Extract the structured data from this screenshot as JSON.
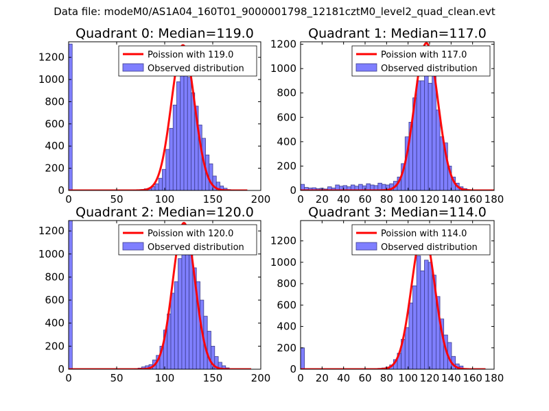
{
  "suptitle": "Data file: modeM0/AS1A04_160T01_9000001798_12181cztM0_level2_quad_clean.evt",
  "colors": {
    "bar_fill": "#7f7fff",
    "bar_edge": "#3c3c8a",
    "poisson_line": "#ff0000"
  },
  "chart_data": [
    {
      "type": "bar",
      "title": "Quadrant 0: Median=119.0",
      "xlim": [
        0,
        200
      ],
      "ylim": [
        0,
        1340
      ],
      "xticks": [
        0,
        50,
        100,
        150,
        200
      ],
      "yticks": [
        0,
        200,
        400,
        600,
        800,
        1000,
        1200
      ],
      "bin_width": 3.75,
      "bins": [
        {
          "x": 0,
          "h": 1320
        },
        {
          "x": 67.5,
          "h": 3
        },
        {
          "x": 71.25,
          "h": 5
        },
        {
          "x": 75,
          "h": 8
        },
        {
          "x": 78.75,
          "h": 15
        },
        {
          "x": 82.5,
          "h": 20
        },
        {
          "x": 86.25,
          "h": 35
        },
        {
          "x": 90,
          "h": 60
        },
        {
          "x": 93.75,
          "h": 110
        },
        {
          "x": 97.5,
          "h": 190
        },
        {
          "x": 101.25,
          "h": 370
        },
        {
          "x": 105,
          "h": 560
        },
        {
          "x": 108.75,
          "h": 770
        },
        {
          "x": 112.5,
          "h": 980
        },
        {
          "x": 116.25,
          "h": 1110
        },
        {
          "x": 120,
          "h": 1080
        },
        {
          "x": 123.75,
          "h": 1020
        },
        {
          "x": 127.5,
          "h": 880
        },
        {
          "x": 131.25,
          "h": 760
        },
        {
          "x": 135,
          "h": 590
        },
        {
          "x": 138.75,
          "h": 470
        },
        {
          "x": 142.5,
          "h": 320
        },
        {
          "x": 146.25,
          "h": 240
        },
        {
          "x": 150,
          "h": 130
        },
        {
          "x": 153.75,
          "h": 75
        },
        {
          "x": 157.5,
          "h": 40
        },
        {
          "x": 161.25,
          "h": 20
        },
        {
          "x": 165,
          "h": 8
        },
        {
          "x": 168.75,
          "h": 4
        }
      ],
      "poisson": {
        "mean": 119.0,
        "peak": 1310,
        "sigma": 12.0,
        "x_end": 186
      },
      "legend": [
        "Poission with 119.0",
        "Observed distribution"
      ]
    },
    {
      "type": "bar",
      "title": "Quadrant 1: Median=117.0",
      "xlim": [
        0,
        180
      ],
      "ylim": [
        0,
        1220
      ],
      "xticks": [
        0,
        20,
        40,
        60,
        80,
        100,
        120,
        140,
        160,
        180
      ],
      "yticks": [
        0,
        200,
        400,
        600,
        800,
        1000,
        1200
      ],
      "bin_width": 3.6,
      "bins": [
        {
          "x": 0,
          "h": 50
        },
        {
          "x": 3.6,
          "h": 25
        },
        {
          "x": 7.2,
          "h": 20
        },
        {
          "x": 10.8,
          "h": 22
        },
        {
          "x": 14.4,
          "h": 15
        },
        {
          "x": 18,
          "h": 18
        },
        {
          "x": 21.6,
          "h": 12
        },
        {
          "x": 25.2,
          "h": 30
        },
        {
          "x": 28.8,
          "h": 20
        },
        {
          "x": 32.4,
          "h": 45
        },
        {
          "x": 36,
          "h": 35
        },
        {
          "x": 39.6,
          "h": 40
        },
        {
          "x": 43.2,
          "h": 30
        },
        {
          "x": 46.8,
          "h": 45
        },
        {
          "x": 50.4,
          "h": 35
        },
        {
          "x": 54,
          "h": 50
        },
        {
          "x": 57.6,
          "h": 38
        },
        {
          "x": 61.2,
          "h": 55
        },
        {
          "x": 64.8,
          "h": 45
        },
        {
          "x": 68.4,
          "h": 40
        },
        {
          "x": 72,
          "h": 60
        },
        {
          "x": 75.6,
          "h": 50
        },
        {
          "x": 79.2,
          "h": 45
        },
        {
          "x": 82.8,
          "h": 55
        },
        {
          "x": 86.4,
          "h": 75
        },
        {
          "x": 90,
          "h": 110
        },
        {
          "x": 93.6,
          "h": 220
        },
        {
          "x": 97.2,
          "h": 440
        },
        {
          "x": 100.8,
          "h": 560
        },
        {
          "x": 104.4,
          "h": 760
        },
        {
          "x": 108,
          "h": 900
        },
        {
          "x": 111.6,
          "h": 900
        },
        {
          "x": 115.2,
          "h": 1020
        },
        {
          "x": 118.8,
          "h": 880
        },
        {
          "x": 122.4,
          "h": 1080
        },
        {
          "x": 126,
          "h": 660
        },
        {
          "x": 129.6,
          "h": 440
        },
        {
          "x": 133.2,
          "h": 390
        },
        {
          "x": 136.8,
          "h": 200
        },
        {
          "x": 140.4,
          "h": 110
        },
        {
          "x": 144,
          "h": 60
        },
        {
          "x": 147.6,
          "h": 30
        },
        {
          "x": 151.2,
          "h": 15
        },
        {
          "x": 154.8,
          "h": 5
        }
      ],
      "poisson": {
        "mean": 117.0,
        "peak": 1210,
        "sigma": 10.8,
        "x_end": 180
      },
      "legend": [
        "Poission with 117.0",
        "Observed distribution"
      ]
    },
    {
      "type": "bar",
      "title": "Quadrant 2: Median=120.0",
      "xlim": [
        0,
        200
      ],
      "ylim": [
        0,
        1290
      ],
      "xticks": [
        0,
        50,
        100,
        150,
        200
      ],
      "yticks": [
        0,
        200,
        400,
        600,
        800,
        1000,
        1200
      ],
      "bin_width": 3.8,
      "bins": [
        {
          "x": 0,
          "h": 1290
        },
        {
          "x": 68.4,
          "h": 5
        },
        {
          "x": 72.2,
          "h": 10
        },
        {
          "x": 76,
          "h": 20
        },
        {
          "x": 79.8,
          "h": 30
        },
        {
          "x": 83.6,
          "h": 40
        },
        {
          "x": 87.4,
          "h": 80
        },
        {
          "x": 91.2,
          "h": 120
        },
        {
          "x": 95,
          "h": 200
        },
        {
          "x": 98.8,
          "h": 340
        },
        {
          "x": 102.6,
          "h": 480
        },
        {
          "x": 106.4,
          "h": 660
        },
        {
          "x": 110.2,
          "h": 760
        },
        {
          "x": 114,
          "h": 960
        },
        {
          "x": 117.8,
          "h": 1080
        },
        {
          "x": 121.6,
          "h": 1060
        },
        {
          "x": 125.4,
          "h": 1020
        },
        {
          "x": 129.2,
          "h": 880
        },
        {
          "x": 133,
          "h": 760
        },
        {
          "x": 136.8,
          "h": 600
        },
        {
          "x": 140.6,
          "h": 460
        },
        {
          "x": 144.4,
          "h": 330
        },
        {
          "x": 148.2,
          "h": 200
        },
        {
          "x": 152,
          "h": 110
        },
        {
          "x": 155.8,
          "h": 60
        },
        {
          "x": 159.6,
          "h": 30
        },
        {
          "x": 163.4,
          "h": 12
        }
      ],
      "poisson": {
        "mean": 120.0,
        "peak": 1270,
        "sigma": 11.5,
        "x_end": 190
      },
      "legend": [
        "Poission with 120.0",
        "Observed distribution"
      ]
    },
    {
      "type": "bar",
      "title": "Quadrant 3: Median=114.0",
      "xlim": [
        0,
        180
      ],
      "ylim": [
        0,
        1390
      ],
      "xticks": [
        0,
        20,
        40,
        60,
        80,
        100,
        120,
        140,
        160,
        180
      ],
      "yticks": [
        0,
        200,
        400,
        600,
        800,
        1000,
        1200
      ],
      "bin_width": 3.6,
      "bins": [
        {
          "x": 0,
          "h": 200
        },
        {
          "x": 64.8,
          "h": 3
        },
        {
          "x": 68.4,
          "h": 5
        },
        {
          "x": 72,
          "h": 8
        },
        {
          "x": 75.6,
          "h": 12
        },
        {
          "x": 79.2,
          "h": 20
        },
        {
          "x": 82.8,
          "h": 40
        },
        {
          "x": 86.4,
          "h": 90
        },
        {
          "x": 90,
          "h": 150
        },
        {
          "x": 93.6,
          "h": 280
        },
        {
          "x": 97.2,
          "h": 390
        },
        {
          "x": 100.8,
          "h": 620
        },
        {
          "x": 104.4,
          "h": 780
        },
        {
          "x": 108,
          "h": 1060
        },
        {
          "x": 111.6,
          "h": 920
        },
        {
          "x": 115.2,
          "h": 1020
        },
        {
          "x": 118.8,
          "h": 1000
        },
        {
          "x": 122.4,
          "h": 880
        },
        {
          "x": 126,
          "h": 680
        },
        {
          "x": 129.6,
          "h": 470
        },
        {
          "x": 133.2,
          "h": 320
        },
        {
          "x": 136.8,
          "h": 250
        },
        {
          "x": 140.4,
          "h": 120
        },
        {
          "x": 144,
          "h": 50
        },
        {
          "x": 147.6,
          "h": 30
        }
      ],
      "poisson": {
        "mean": 114.0,
        "peak": 1300,
        "sigma": 10.7,
        "x_end": 172
      },
      "legend": [
        "Poission with 114.0",
        "Observed distribution"
      ]
    }
  ]
}
